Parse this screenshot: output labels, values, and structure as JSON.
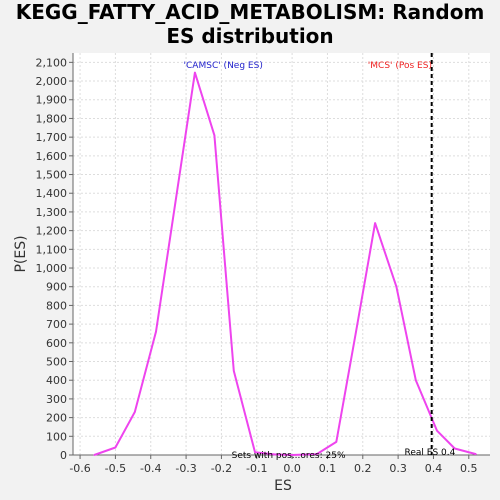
{
  "chart_data": {
    "type": "line",
    "title_line1": "KEGG_FATTY_ACID_METABOLISM: Random",
    "title_line2": "ES distribution",
    "xlabel": "ES",
    "ylabel": "P(ES)",
    "xlim": [
      -0.62,
      0.56
    ],
    "ylim": [
      0,
      2150
    ],
    "xticks": [
      -0.6,
      -0.5,
      -0.4,
      -0.3,
      -0.2,
      -0.1,
      0.0,
      0.1,
      0.2,
      0.3,
      0.4,
      0.5
    ],
    "xtick_labels": [
      "-0.6",
      "-0.5",
      "-0.4",
      "-0.3",
      "-0.2",
      "-0.1",
      "0.0",
      "0.1",
      "0.2",
      "0.3",
      "0.4",
      "0.5"
    ],
    "yticks": [
      0,
      100,
      200,
      300,
      400,
      500,
      600,
      700,
      800,
      900,
      1000,
      1100,
      1200,
      1300,
      1400,
      1500,
      1600,
      1700,
      1800,
      1900,
      2000,
      2100
    ],
    "ytick_labels": [
      "0",
      "100",
      "200",
      "300",
      "400",
      "500",
      "600",
      "700",
      "800",
      "900",
      "1,000",
      "1,100",
      "1,200",
      "1,300",
      "1,400",
      "1,500",
      "1,600",
      "1,700",
      "1,800",
      "1,900",
      "2,000",
      "2,100"
    ],
    "grid": true,
    "series": [
      {
        "color": "#ee44ee",
        "x": [
          -0.56,
          -0.5,
          -0.445,
          -0.385,
          -0.275,
          -0.22,
          -0.165,
          -0.105,
          -0.05,
          0.0,
          0.07,
          0.125,
          0.18,
          0.235,
          0.295,
          0.35,
          0.41,
          0.46,
          0.52
        ],
        "y": [
          0,
          40,
          230,
          660,
          2045,
          1710,
          450,
          15,
          3,
          0,
          5,
          70,
          650,
          1240,
          900,
          400,
          130,
          35,
          5
        ]
      }
    ],
    "annotations": [
      {
        "text": "'CAMSC' (Neg ES)",
        "color": "#2222cc",
        "x": -0.195
      },
      {
        "text": "'MCS' (Pos ES)",
        "color": "#ee2222",
        "x": 0.305
      },
      {
        "text": "Real ES 0.4",
        "color": "#000000",
        "x": 0.39
      },
      {
        "text": "Sets with pos...ores: 25%",
        "color": "#000000",
        "x": -0.01
      }
    ],
    "real_es": 0.395
  }
}
